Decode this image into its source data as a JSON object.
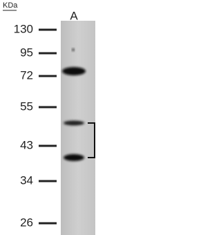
{
  "unit_label": "KDa",
  "lane_label": "A",
  "markers": [
    130,
    95,
    72,
    55,
    43,
    34,
    26
  ]
}
